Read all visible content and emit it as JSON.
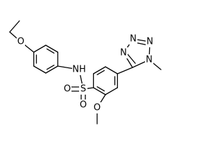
{
  "atoms": [
    "O",
    "NH",
    "S",
    "O",
    "O",
    "O",
    "N",
    "N",
    "N",
    "N"
  ]
}
